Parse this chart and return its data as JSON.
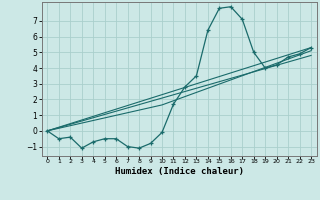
{
  "title": "",
  "xlabel": "Humidex (Indice chaleur)",
  "ylabel": "",
  "bg_color": "#cce8e6",
  "grid_color": "#aacfcc",
  "line_color": "#1a6b6b",
  "xlim": [
    -0.5,
    23.5
  ],
  "ylim": [
    -1.6,
    8.2
  ],
  "xticks": [
    0,
    1,
    2,
    3,
    4,
    5,
    6,
    7,
    8,
    9,
    10,
    11,
    12,
    13,
    14,
    15,
    16,
    17,
    18,
    19,
    20,
    21,
    22,
    23
  ],
  "yticks": [
    -1,
    0,
    1,
    2,
    3,
    4,
    5,
    6,
    7
  ],
  "curve1_x": [
    0,
    1,
    2,
    3,
    4,
    5,
    6,
    7,
    8,
    9,
    10,
    11,
    12,
    13,
    14,
    15,
    16,
    17,
    18,
    19,
    20,
    21,
    22,
    23
  ],
  "curve1_y": [
    0,
    -0.5,
    -0.4,
    -1.1,
    -0.7,
    -0.5,
    -0.5,
    -1.0,
    -1.1,
    -0.8,
    -0.1,
    1.7,
    2.8,
    3.5,
    6.4,
    7.8,
    7.9,
    7.1,
    5.0,
    4.0,
    4.2,
    4.7,
    4.9,
    5.3
  ],
  "curve2_x": [
    0,
    23
  ],
  "curve2_y": [
    0,
    5.3
  ],
  "curve3_x": [
    0,
    23
  ],
  "curve3_y": [
    0,
    4.8
  ],
  "curve4_x": [
    0,
    10,
    23
  ],
  "curve4_y": [
    0,
    1.65,
    5.1
  ]
}
